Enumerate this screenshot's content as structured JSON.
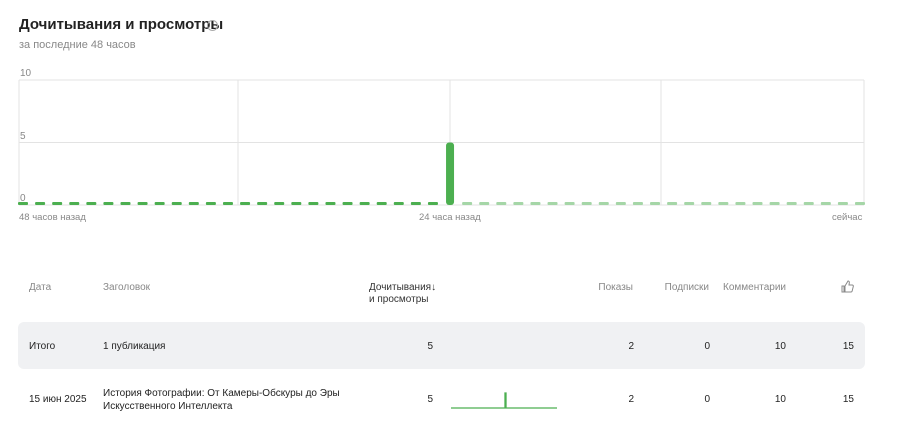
{
  "header": {
    "title": "Дочитывания и просмотры",
    "help_icon": "question-circle-icon",
    "subtitle": "за последние 48 часов"
  },
  "chart_data": {
    "type": "bar",
    "ylim": [
      0,
      10
    ],
    "yticks": [
      "10",
      "5",
      "0"
    ],
    "xtick_labels": [
      "48 часов назад",
      "24 часа назад",
      "сейчас"
    ],
    "grid": true,
    "series": [
      {
        "values": [
          0,
          0,
          0,
          0,
          0,
          0,
          0,
          0,
          0,
          0,
          0,
          0,
          0,
          0,
          0,
          0,
          0,
          0,
          0,
          0,
          0,
          0,
          0,
          0,
          0,
          5
        ],
        "color": "#4caf50"
      },
      {
        "values": [
          0,
          0,
          0,
          0,
          0,
          0,
          0,
          0,
          0,
          0,
          0,
          0,
          0,
          0,
          0,
          0,
          0,
          0,
          0,
          0,
          0,
          0,
          0,
          0
        ],
        "color": "#a5d6a7"
      }
    ]
  },
  "table": {
    "headers": {
      "date": "Дата",
      "title": "Заголовок",
      "reads": "Дочитывания↓",
      "reads2": "и просмотры",
      "impressions": "Показы",
      "subscriptions": "Подписки",
      "comments": "Комментарии",
      "likes_icon": "thumbs-up-icon"
    },
    "total": {
      "date": "Итого",
      "title": "1 публикация",
      "reads": "5",
      "impressions": "2",
      "subscriptions": "0",
      "comments": "10",
      "likes": "15"
    },
    "rows": [
      {
        "date": "15 июн 2025",
        "title1": "История Фотографии: От Камеры-Обскуры до Эры",
        "title2": "Искусственного Интеллекта",
        "reads": "5",
        "impressions": "2",
        "subscriptions": "0",
        "comments": "10",
        "likes": "15"
      }
    ]
  }
}
